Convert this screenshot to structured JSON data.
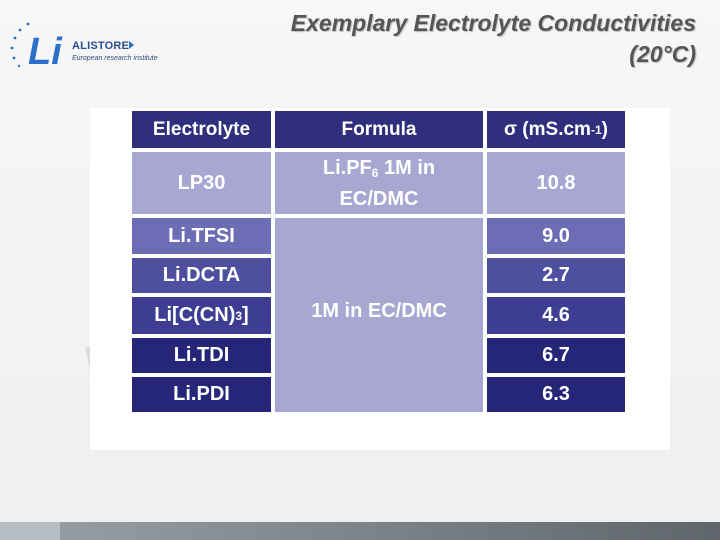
{
  "logo": {
    "name": "ALISTORE",
    "subtitle": "European research institute",
    "mark": "Li"
  },
  "title": {
    "line1": "Exemplary Electrolyte Conductivities",
    "line2": "(20°C)"
  },
  "watermark": "N",
  "table": {
    "headers": {
      "electrolyte": "Electrolyte",
      "formula": "Formula",
      "conductivity_symbol": "σ (mS.cm",
      "conductivity_sup": "-1",
      "conductivity_close": ")"
    },
    "reference_row": {
      "electrolyte": "LP30",
      "formula_pre": "Li.PF",
      "formula_sub": "6",
      "formula_post": " 1M in",
      "formula_line2": "EC/DMC",
      "conductivity": "10.8"
    },
    "merged_formula": "1M in EC/DMC",
    "rows": [
      {
        "electrolyte": "Li.TFSI",
        "conductivity": "9.0"
      },
      {
        "electrolyte": "Li.DCTA",
        "conductivity": "2.7"
      },
      {
        "electrolyte_pre": "Li[C(CN)",
        "electrolyte_sub": "3",
        "electrolyte_post": "]",
        "conductivity": "4.6"
      },
      {
        "electrolyte": "Li.TDI",
        "conductivity": "6.7"
      },
      {
        "electrolyte": "Li.PDI",
        "conductivity": "6.3"
      }
    ]
  },
  "colors": {
    "header": "#2f2f7d",
    "light": "#a7a7d2",
    "row_tfsi": "#6d6db6",
    "row_dcta": "#4f4fa0",
    "row_ccn": "#3d3d92",
    "row_dark": "#262678"
  }
}
